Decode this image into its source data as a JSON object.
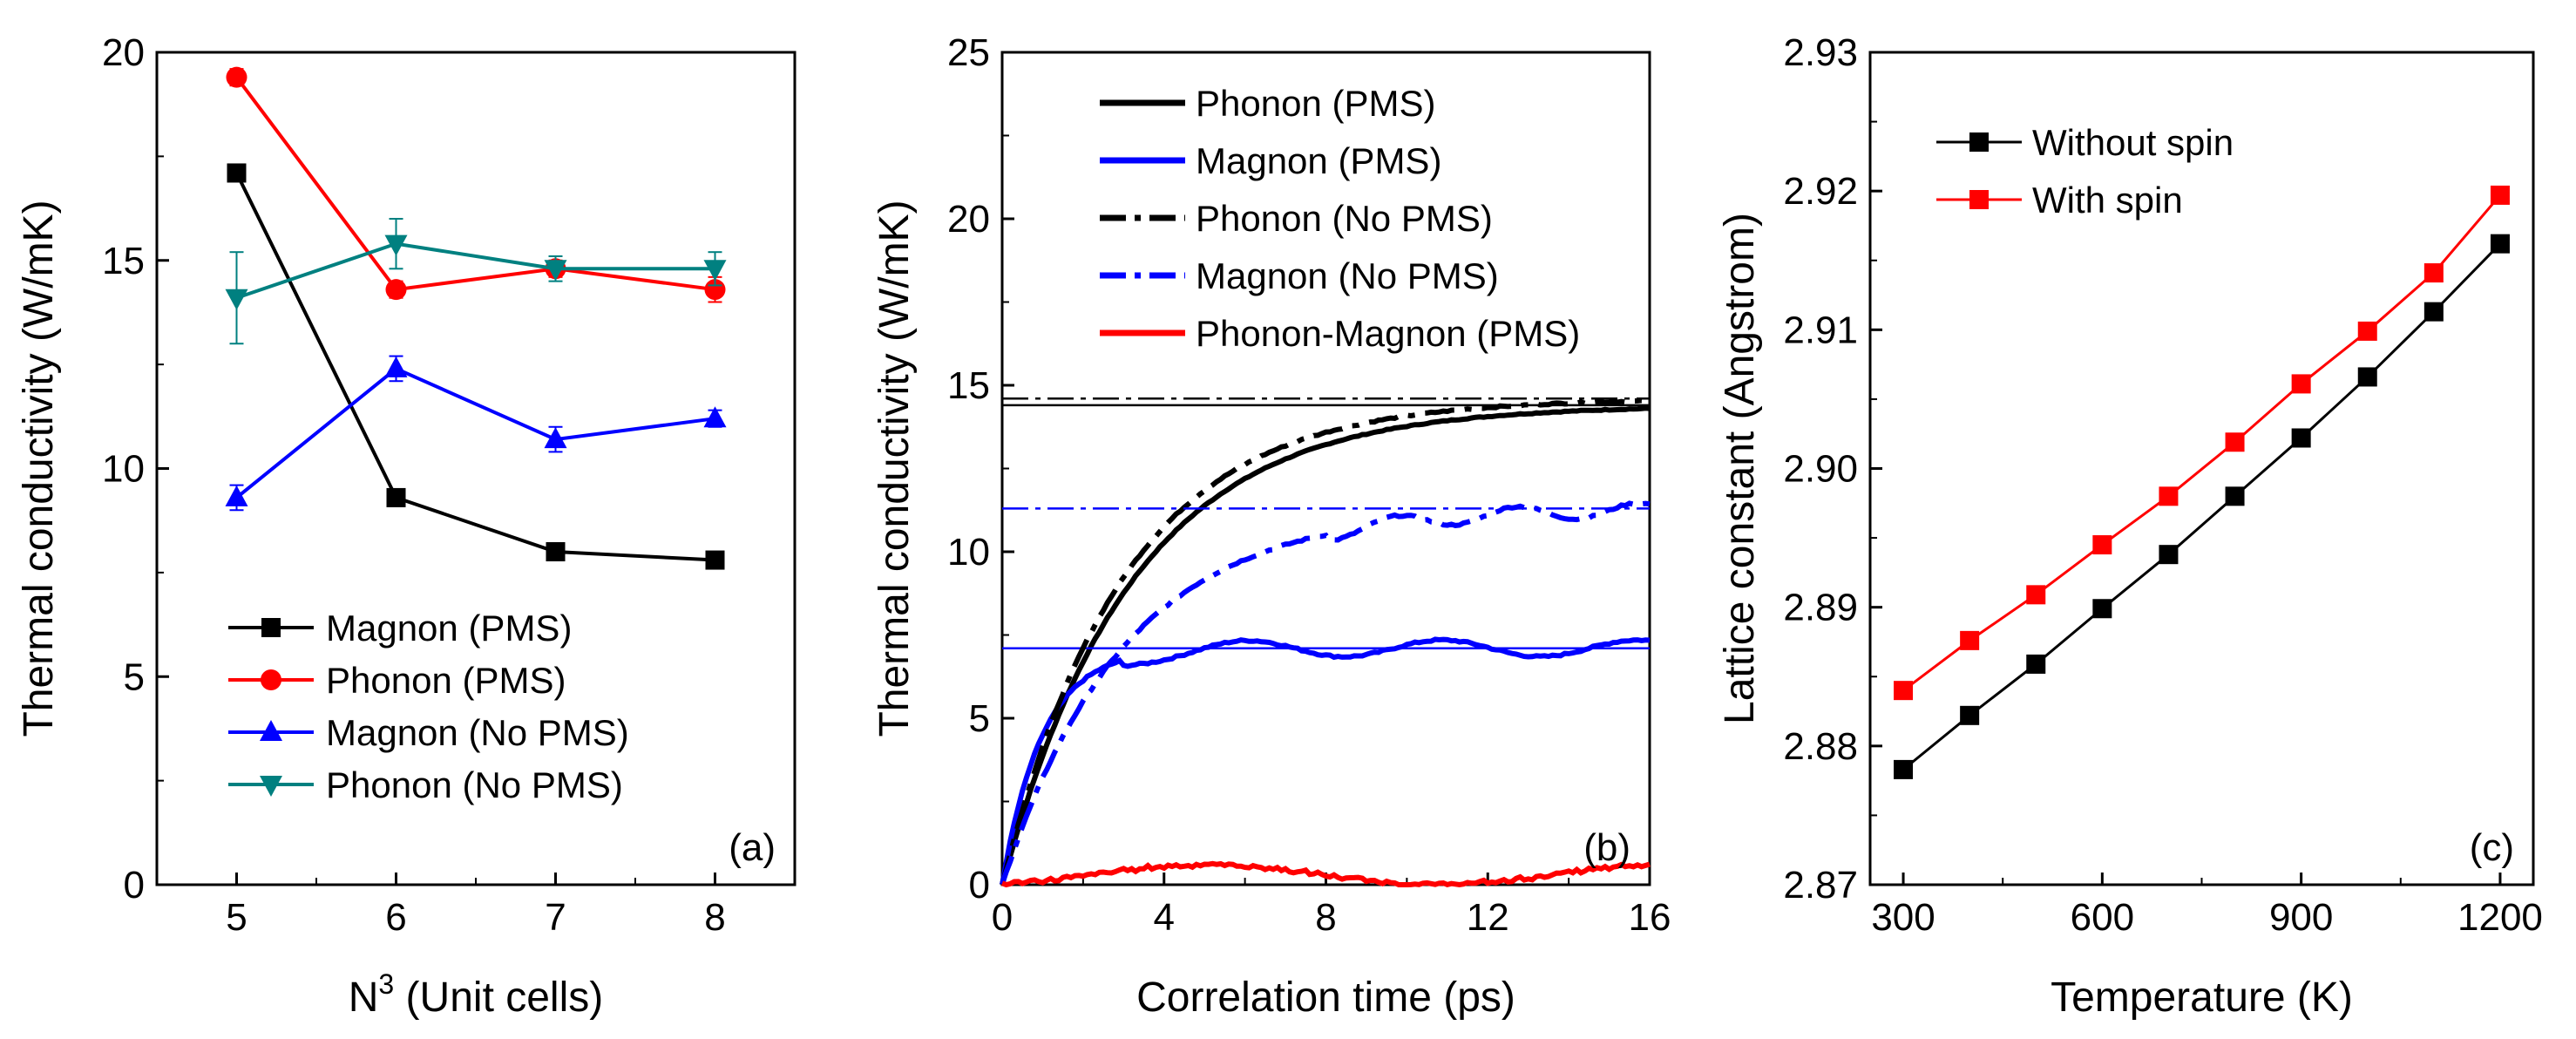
{
  "chart_data": [
    {
      "panel_label": "(a)",
      "type": "line",
      "xlabel_base": "N",
      "xlabel_sup": "3",
      "xlabel_rest": " (Unit cells)",
      "ylabel": "Thermal conductivity (W/mK)",
      "xlim": [
        4.5,
        8.5
      ],
      "ylim": [
        0,
        20
      ],
      "xticks": [
        5,
        6,
        7,
        8
      ],
      "yticks": [
        0,
        5,
        10,
        15,
        20
      ],
      "x": [
        5,
        6,
        7,
        8
      ],
      "series": [
        {
          "name": "Magnon (PMS)",
          "color": "#000000",
          "marker": "square",
          "values": [
            17.1,
            9.3,
            8.0,
            7.8
          ],
          "err": [
            0.2,
            0.2,
            0.2,
            0.2
          ]
        },
        {
          "name": "Phonon (PMS)",
          "color": "#ff0000",
          "marker": "circle",
          "values": [
            19.4,
            14.3,
            14.8,
            14.3
          ],
          "err": [
            0.2,
            0.2,
            0.2,
            0.3
          ]
        },
        {
          "name": "Magnon (No PMS)",
          "color": "#0000ff",
          "marker": "triangle-up",
          "values": [
            9.3,
            12.4,
            10.7,
            11.2
          ],
          "err": [
            0.3,
            0.3,
            0.3,
            0.2
          ]
        },
        {
          "name": "Phonon (No PMS)",
          "color": "#008080",
          "marker": "triangle-down",
          "values": [
            14.1,
            15.4,
            14.8,
            14.8
          ],
          "err": [
            1.1,
            0.6,
            0.3,
            0.4
          ]
        }
      ]
    },
    {
      "panel_label": "(b)",
      "type": "line",
      "xlabel": "Correlation time (ps)",
      "ylabel": "Thermal conductivity (W/mK)",
      "xlim": [
        0,
        16
      ],
      "ylim": [
        0,
        25
      ],
      "xticks": [
        0,
        4,
        8,
        12,
        16
      ],
      "yticks": [
        0,
        5,
        10,
        15,
        20,
        25
      ],
      "series": [
        {
          "name": "Phonon (PMS)",
          "color": "#000000",
          "style": "solid",
          "plateau": 14.4,
          "tau": 3.2,
          "noise": 0.1
        },
        {
          "name": "Magnon (PMS)",
          "color": "#0000ff",
          "style": "solid",
          "plateau": 7.1,
          "tau": 1.0,
          "noise": 0.2
        },
        {
          "name": "Phonon (No PMS)",
          "color": "#000000",
          "style": "dashdot",
          "plateau": 14.6,
          "tau": 3.0,
          "noise": 0.15
        },
        {
          "name": "Magnon (No PMS)",
          "color": "#0000ff",
          "style": "dashdot",
          "plateau": 11.3,
          "tau": 3.0,
          "noise": 0.2
        },
        {
          "name": "Phonon-Magnon (PMS)",
          "color": "#ff0000",
          "style": "solid",
          "plateau": 0.3,
          "tau": 0.5,
          "noise": 0.25
        }
      ]
    },
    {
      "panel_label": "(c)",
      "type": "line",
      "xlabel": "Temperature (K)",
      "ylabel": "Lattice constant (Angstrom)",
      "xlim": [
        250,
        1250
      ],
      "ylim": [
        2.87,
        2.93
      ],
      "xticks": [
        300,
        600,
        900,
        1200
      ],
      "yticks": [
        2.87,
        2.88,
        2.89,
        2.9,
        2.91,
        2.92,
        2.93
      ],
      "ytick_labels": [
        "2.87",
        "2.88",
        "2.89",
        "2.90",
        "2.91",
        "2.92",
        "2.93"
      ],
      "x": [
        300,
        400,
        500,
        600,
        700,
        800,
        900,
        1000,
        1100,
        1200
      ],
      "series": [
        {
          "name": "Without spin",
          "color": "#000000",
          "marker": "square",
          "values": [
            2.8783,
            2.8822,
            2.8859,
            2.8899,
            2.8938,
            2.898,
            2.9022,
            2.9066,
            2.9113,
            2.9162
          ]
        },
        {
          "name": "With spin",
          "color": "#ff0000",
          "marker": "square",
          "values": [
            2.884,
            2.8876,
            2.8909,
            2.8945,
            2.898,
            2.9019,
            2.9061,
            2.9099,
            2.9141,
            2.9197
          ]
        }
      ]
    }
  ]
}
